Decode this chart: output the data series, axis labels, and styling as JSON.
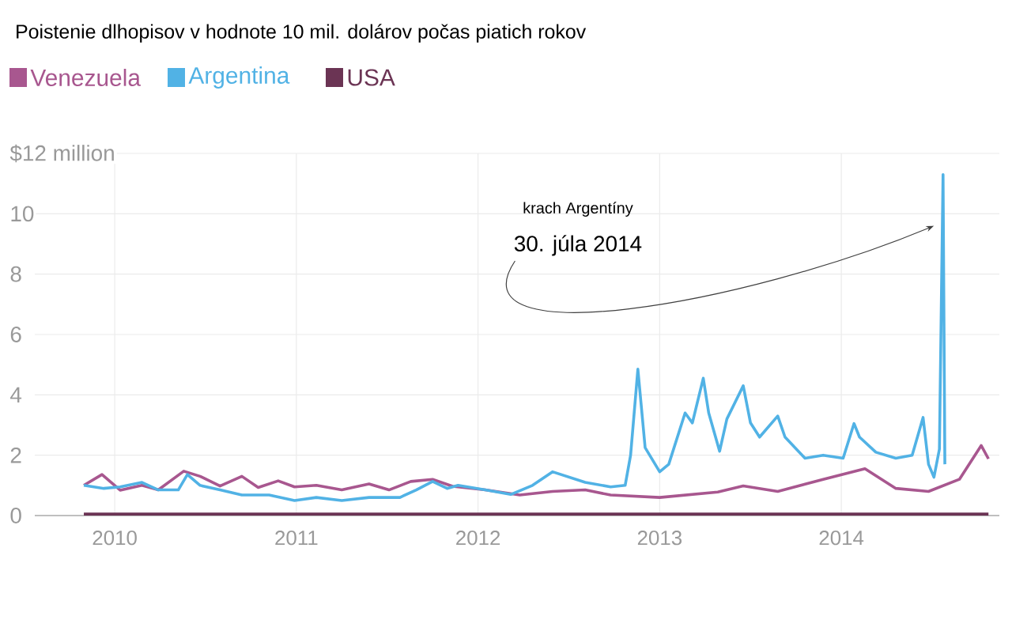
{
  "chart_data": {
    "type": "line",
    "title": "Poistenie dlhopisov v hodnote 10 mil. dolárov počas piatich rokov",
    "series": [
      {
        "name": "Venezuela",
        "color": "#a8578f",
        "x": [
          2009.83,
          2009.93,
          2010.03,
          2010.15,
          2010.24,
          2010.38,
          2010.47,
          2010.58,
          2010.7,
          2010.79,
          2010.9,
          2010.99,
          2011.11,
          2011.25,
          2011.4,
          2011.51,
          2011.63,
          2011.75,
          2011.86,
          2012.04,
          2012.23,
          2012.41,
          2012.59,
          2012.73,
          2013.0,
          2013.32,
          2013.46,
          2013.65,
          2013.9,
          2014.13,
          2014.3,
          2014.48,
          2014.65,
          2014.77,
          2014.81
        ],
        "values": [
          1.0,
          1.36,
          0.84,
          1.0,
          0.85,
          1.47,
          1.3,
          0.98,
          1.3,
          0.93,
          1.15,
          0.95,
          1.0,
          0.85,
          1.05,
          0.85,
          1.13,
          1.2,
          0.97,
          0.85,
          0.68,
          0.8,
          0.85,
          0.68,
          0.6,
          0.78,
          0.98,
          0.8,
          1.2,
          1.55,
          0.9,
          0.8,
          1.2,
          2.32,
          1.88
        ]
      },
      {
        "name": "Argentina",
        "color": "#51b2e5",
        "x": [
          2009.83,
          2009.94,
          2010.03,
          2010.15,
          2010.24,
          2010.35,
          2010.4,
          2010.47,
          2010.58,
          2010.7,
          2010.85,
          2010.99,
          2011.11,
          2011.25,
          2011.4,
          2011.57,
          2011.66,
          2011.75,
          2011.83,
          2011.89,
          2012.04,
          2012.18,
          2012.3,
          2012.41,
          2012.59,
          2012.73,
          2012.81,
          2012.84,
          2012.88,
          2012.92,
          2013.0,
          2013.05,
          2013.14,
          2013.18,
          2013.24,
          2013.27,
          2013.33,
          2013.37,
          2013.46,
          2013.5,
          2013.55,
          2013.65,
          2013.69,
          2013.8,
          2013.9,
          2014.01,
          2014.07,
          2014.1,
          2014.19,
          2014.3,
          2014.39,
          2014.45,
          2014.48,
          2014.51,
          2014.54,
          2014.56,
          2014.57
        ],
        "values": [
          1.0,
          0.9,
          0.95,
          1.1,
          0.85,
          0.85,
          1.36,
          1.0,
          0.85,
          0.68,
          0.68,
          0.5,
          0.6,
          0.5,
          0.6,
          0.6,
          0.85,
          1.13,
          0.9,
          1.0,
          0.85,
          0.7,
          1.0,
          1.45,
          1.1,
          0.95,
          1.0,
          2.0,
          4.85,
          2.25,
          1.45,
          1.7,
          3.4,
          3.07,
          4.55,
          3.4,
          2.13,
          3.2,
          4.3,
          3.07,
          2.6,
          3.3,
          2.6,
          1.9,
          2.0,
          1.9,
          3.05,
          2.6,
          2.1,
          1.9,
          2.0,
          3.25,
          1.7,
          1.27,
          2.2,
          11.3,
          1.7
        ]
      },
      {
        "name": "USA",
        "color": "#6b3454",
        "x": [
          2009.83,
          2011.0,
          2012.0,
          2013.0,
          2014.0,
          2014.81
        ],
        "values": [
          0.05,
          0.05,
          0.05,
          0.05,
          0.05,
          0.05
        ]
      }
    ],
    "xlim": [
      2009.56,
      2014.87
    ],
    "xticks": [
      2010,
      2011,
      2012,
      2013,
      2014
    ],
    "ylim": [
      0,
      12
    ],
    "yticks": [
      0,
      2,
      4,
      6,
      8,
      10,
      {
        "value": 12,
        "label": "$12 million"
      }
    ],
    "grid": true,
    "legend": "top left",
    "marker": "none",
    "line_style": "solid",
    "annotations": [
      "krach Argentíny",
      {
        "text": "30. júla 2014",
        "x": 2014.51,
        "y": 9.6
      }
    ]
  }
}
